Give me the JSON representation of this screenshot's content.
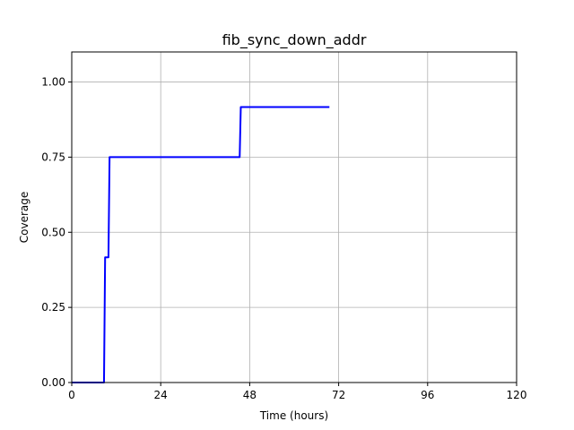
{
  "chart_data": {
    "type": "line",
    "title": "fib_sync_down_addr",
    "xlabel": "Time (hours)",
    "ylabel": "Coverage",
    "xlim": [
      0,
      120
    ],
    "ylim": [
      0.0,
      1.1
    ],
    "xticks": [
      0,
      24,
      48,
      72,
      96,
      120
    ],
    "xtick_labels": [
      "0",
      "24",
      "48",
      "72",
      "96",
      "120"
    ],
    "yticks": [
      0.0,
      0.25,
      0.5,
      0.75,
      1.0
    ],
    "ytick_labels": [
      "0.00",
      "0.25",
      "0.50",
      "0.75",
      "1.00"
    ],
    "grid": true,
    "series": [
      {
        "color": "#0000ff",
        "x": [
          0,
          8.7,
          9.0,
          9.9,
          10.2,
          45.3,
          45.6,
          69.5
        ],
        "y": [
          0.0,
          0.0,
          0.4167,
          0.4167,
          0.75,
          0.75,
          0.9167,
          0.9167
        ]
      }
    ]
  }
}
